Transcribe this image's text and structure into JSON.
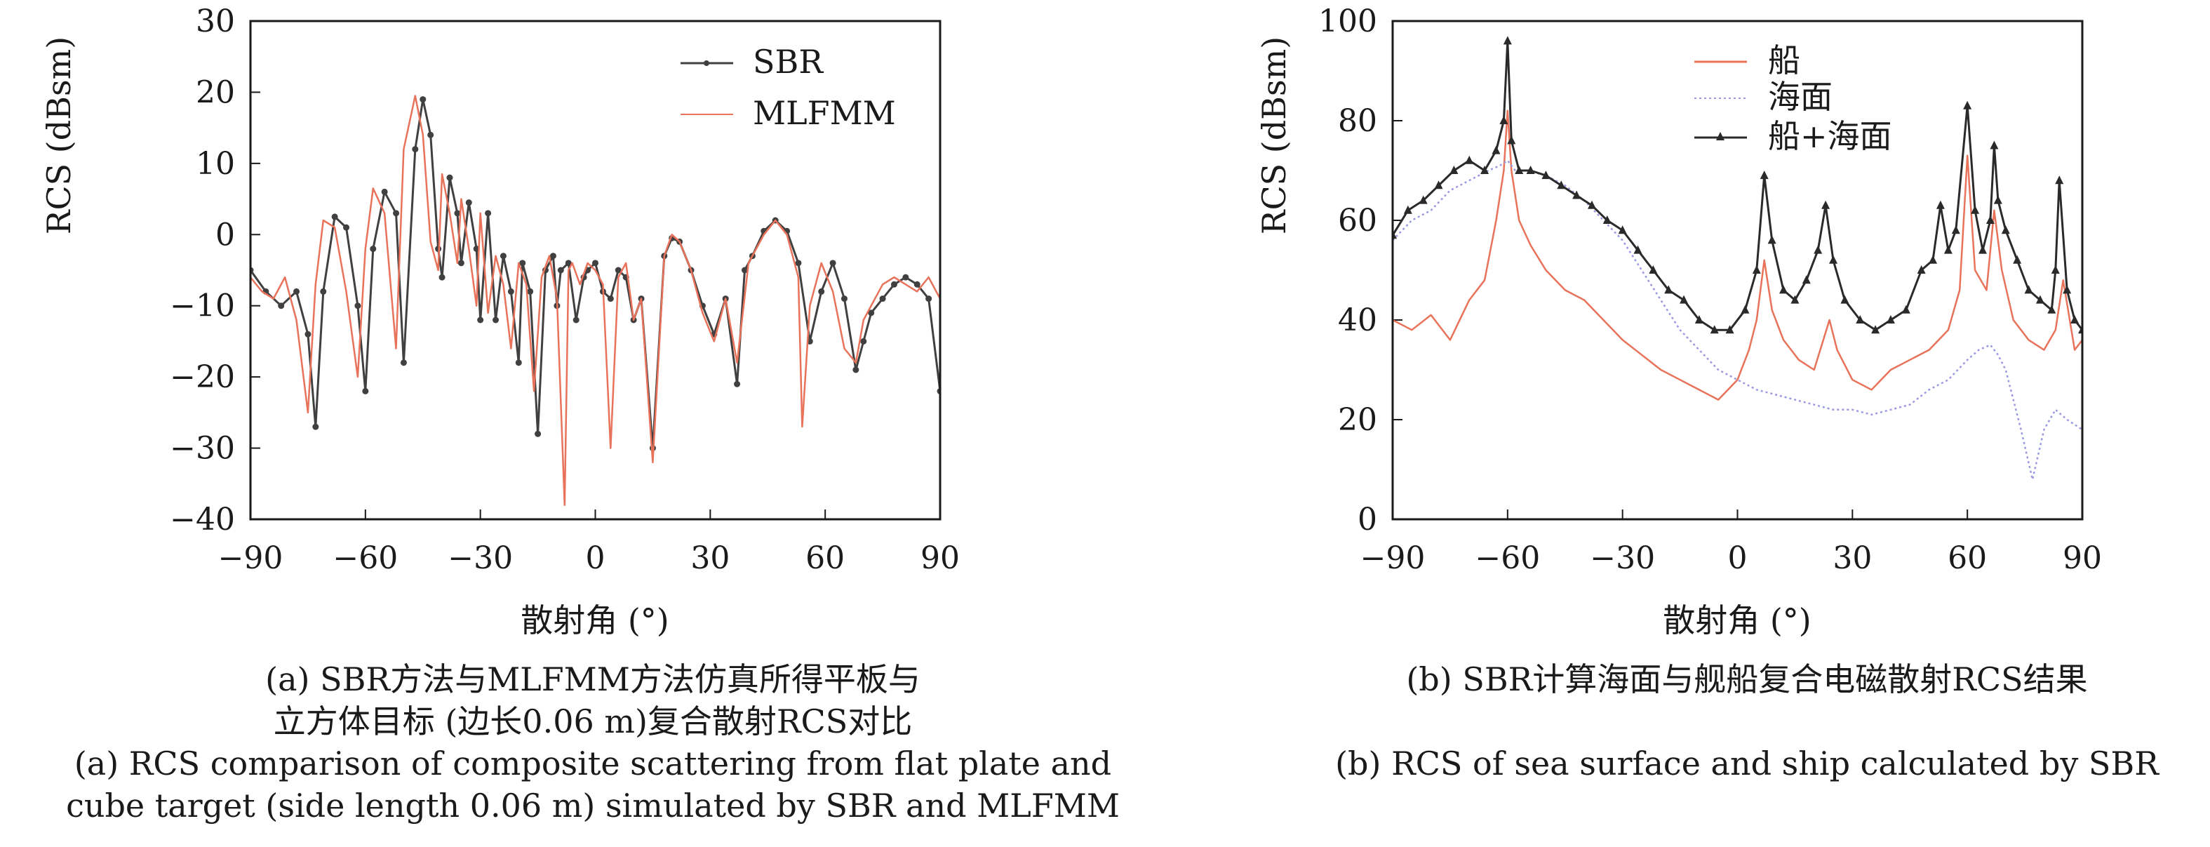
{
  "chart_data": [
    {
      "type": "line",
      "panel": "a",
      "xlabel": "散射角 (°)",
      "ylabel": "RCS (dBsm)",
      "xlim": [
        -90,
        90
      ],
      "ylim": [
        -40,
        30
      ],
      "xticks": [
        "−90",
        "−60",
        "−30",
        "0",
        "30",
        "60",
        "90"
      ],
      "xtick_values": [
        -90,
        -60,
        -30,
        0,
        30,
        60,
        90
      ],
      "yticks": [
        "30",
        "20",
        "10",
        "0",
        "−10",
        "−20",
        "−30",
        "−40"
      ],
      "ytick_values": [
        30,
        20,
        10,
        0,
        -10,
        -20,
        -30,
        -40
      ],
      "grid": false,
      "legend_position": "top-right",
      "series": [
        {
          "name": "SBR",
          "color": "#404040",
          "marker": "circle",
          "x": [
            -90,
            -86,
            -82,
            -78,
            -75,
            -73,
            -71,
            -68,
            -65,
            -62,
            -60,
            -58,
            -55,
            -52,
            -50,
            -47,
            -45,
            -43,
            -41,
            -40,
            -38,
            -36,
            -35,
            -33,
            -31,
            -30,
            -28,
            -26,
            -24,
            -22,
            -20,
            -19,
            -17,
            -15,
            -13,
            -11,
            -10,
            -9,
            -7,
            -5,
            -3,
            -2,
            0,
            2,
            4,
            6,
            8,
            10,
            12,
            15,
            18,
            20,
            22,
            25,
            28,
            31,
            34,
            37,
            39,
            41,
            44,
            47,
            50,
            53,
            56,
            59,
            62,
            65,
            68,
            70,
            72,
            75,
            78,
            81,
            84,
            87,
            90
          ],
          "y": [
            -5,
            -8,
            -10,
            -8,
            -14,
            -27,
            -8,
            2.5,
            1,
            -10,
            -22,
            -2,
            6,
            3,
            -18,
            12,
            19,
            14,
            -2,
            -6,
            8,
            3,
            -4,
            4.5,
            -2,
            -12,
            3,
            -12,
            -3,
            -8,
            -18,
            -4,
            -8,
            -28,
            -5,
            -3,
            -10,
            -5,
            -4,
            -12,
            -6,
            -5,
            -4,
            -8,
            -9,
            -5,
            -6,
            -12,
            -9,
            -30,
            -3,
            -0.5,
            -1,
            -5,
            -10,
            -14,
            -9,
            -21,
            -5,
            -3,
            0.5,
            2,
            0.5,
            -4,
            -15,
            -8,
            -4,
            -9,
            -19,
            -15,
            -11,
            -9,
            -7,
            -6,
            -7,
            -9,
            -22
          ]
        },
        {
          "name": "MLFMM",
          "color": "#e8725a",
          "x": [
            -90,
            -87,
            -84,
            -81,
            -78,
            -75,
            -73,
            -71,
            -68,
            -65,
            -62,
            -60,
            -58,
            -55,
            -52,
            -50,
            -47,
            -45,
            -43,
            -41,
            -40,
            -38,
            -36,
            -35,
            -33,
            -31,
            -30,
            -28,
            -26,
            -24,
            -22,
            -20,
            -18,
            -16,
            -14,
            -12,
            -10,
            -8,
            -7,
            -6,
            -4,
            -2,
            0,
            2,
            4,
            6,
            7,
            8,
            10,
            12,
            15,
            18,
            20,
            22,
            25,
            28,
            31,
            34,
            37,
            40,
            44,
            47,
            50,
            53,
            54,
            56,
            59,
            62,
            65,
            68,
            70,
            72,
            75,
            78,
            81,
            84,
            87,
            90
          ],
          "y": [
            -6,
            -8,
            -9,
            -6,
            -12,
            -25,
            -7,
            2,
            1,
            -8,
            -20,
            -2,
            6.5,
            3,
            -16,
            12,
            19.5,
            14,
            -1,
            -5,
            8.5,
            3,
            -4,
            5,
            -2,
            -10,
            3,
            -11,
            -3,
            -7,
            -16,
            -4,
            -7,
            -22,
            -6,
            -3,
            -9,
            -38,
            -5,
            -4,
            -7,
            -4,
            -5,
            -7,
            -30,
            -6,
            -5,
            -4,
            -12,
            -9,
            -32,
            -3,
            0,
            -1,
            -5,
            -11,
            -15,
            -9,
            -18,
            -4,
            0,
            2,
            0,
            -6,
            -27,
            -10,
            -4,
            -8,
            -16,
            -18,
            -12,
            -10,
            -7,
            -6,
            -7,
            -8,
            -6,
            -9
          ]
        }
      ],
      "caption_zh_line1": "(a) SBR方法与MLFMM方法仿真所得平板与",
      "caption_zh_line2": "立方体目标 (边长0.06 m)复合散射RCS对比",
      "caption_en_line1": "(a) RCS comparison of composite scattering from flat plate and",
      "caption_en_line2": "cube target (side length 0.06 m) simulated by SBR and MLFMM"
    },
    {
      "type": "line",
      "panel": "b",
      "xlabel": "散射角 (°)",
      "ylabel": "RCS (dBsm)",
      "xlim": [
        -90,
        90
      ],
      "ylim": [
        0,
        100
      ],
      "xticks": [
        "−90",
        "−60",
        "−30",
        "0",
        "30",
        "60",
        "90"
      ],
      "xtick_values": [
        -90,
        -60,
        -30,
        0,
        30,
        60,
        90
      ],
      "yticks": [
        "100",
        "80",
        "60",
        "40",
        "20",
        "0"
      ],
      "ytick_values": [
        100,
        80,
        60,
        40,
        20,
        0
      ],
      "grid": false,
      "legend_position": "top-center",
      "series": [
        {
          "name": "船",
          "color": "#e8725a",
          "x": [
            -90,
            -85,
            -80,
            -75,
            -70,
            -66,
            -63,
            -61,
            -60,
            -59,
            -57,
            -54,
            -50,
            -45,
            -40,
            -35,
            -30,
            -25,
            -20,
            -15,
            -10,
            -5,
            0,
            3,
            5,
            7,
            9,
            12,
            16,
            20,
            24,
            26,
            30,
            35,
            40,
            45,
            50,
            55,
            58,
            60,
            62,
            65,
            67,
            69,
            72,
            76,
            80,
            83,
            85,
            88,
            90
          ],
          "y": [
            40,
            38,
            41,
            36,
            44,
            48,
            60,
            70,
            82,
            70,
            60,
            55,
            50,
            46,
            44,
            40,
            36,
            33,
            30,
            28,
            26,
            24,
            28,
            34,
            40,
            52,
            42,
            36,
            32,
            30,
            40,
            34,
            28,
            26,
            30,
            32,
            34,
            38,
            46,
            73,
            50,
            46,
            62,
            50,
            40,
            36,
            34,
            38,
            48,
            34,
            36
          ]
        },
        {
          "name": "海面",
          "color": "#9a9ae0",
          "x": [
            -90,
            -85,
            -80,
            -75,
            -70,
            -65,
            -62,
            -60,
            -58,
            -55,
            -50,
            -45,
            -40,
            -35,
            -30,
            -25,
            -20,
            -15,
            -10,
            -5,
            0,
            5,
            10,
            15,
            20,
            25,
            30,
            35,
            40,
            45,
            50,
            55,
            60,
            63,
            66,
            68,
            70,
            74,
            77,
            80,
            83,
            86,
            90
          ],
          "y": [
            56,
            60,
            62,
            66,
            68,
            70,
            71,
            72,
            70,
            70,
            69,
            67,
            64,
            60,
            56,
            50,
            44,
            38,
            34,
            30,
            28,
            26,
            25,
            24,
            23,
            22,
            22,
            21,
            22,
            23,
            26,
            28,
            32,
            34,
            35,
            33,
            30,
            18,
            8,
            18,
            22,
            20,
            18
          ]
        },
        {
          "name": "船+海面",
          "color": "#2a2a2a",
          "marker": "triangle",
          "x": [
            -90,
            -86,
            -82,
            -78,
            -74,
            -70,
            -66,
            -63,
            -61,
            -60,
            -59,
            -57,
            -54,
            -50,
            -46,
            -42,
            -38,
            -34,
            -30,
            -26,
            -22,
            -18,
            -14,
            -10,
            -6,
            -2,
            2,
            5,
            7,
            9,
            12,
            15,
            18,
            21,
            23,
            25,
            28,
            32,
            36,
            40,
            44,
            48,
            51,
            53,
            55,
            57,
            60,
            62,
            64,
            66,
            67,
            68,
            70,
            73,
            76,
            79,
            82,
            83,
            84,
            86,
            88,
            90
          ],
          "y": [
            57,
            62,
            64,
            67,
            70,
            72,
            70,
            74,
            80,
            96,
            76,
            70,
            70,
            69,
            67,
            65,
            63,
            60,
            58,
            54,
            50,
            46,
            44,
            40,
            38,
            38,
            42,
            50,
            69,
            56,
            46,
            44,
            48,
            54,
            63,
            52,
            44,
            40,
            38,
            40,
            42,
            50,
            52,
            63,
            54,
            58,
            83,
            62,
            54,
            60,
            75,
            64,
            58,
            52,
            46,
            44,
            42,
            50,
            68,
            46,
            40,
            38
          ]
        }
      ],
      "caption_zh_line1": "(b) SBR计算海面与舰船复合电磁散射RCS结果",
      "caption_en_line1": "(b) RCS of sea surface and ship calculated by SBR"
    }
  ]
}
